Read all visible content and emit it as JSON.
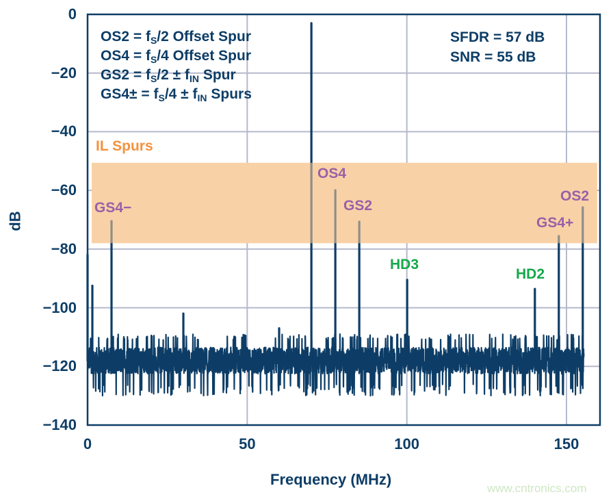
{
  "chart_data": {
    "type": "line",
    "title": "",
    "xlabel": "Frequency (MHz)",
    "ylabel": "dB",
    "xlim": [
      0,
      160.5
    ],
    "ylim": [
      -140,
      0
    ],
    "xticks": [
      "0",
      "50",
      "100",
      "150"
    ],
    "xtick_values": [
      0,
      50,
      100,
      150
    ],
    "yticks": [
      "0",
      "−20",
      "−40",
      "−60",
      "−80",
      "−100",
      "−120",
      "−140"
    ],
    "ytick_values": [
      0,
      -20,
      -40,
      -60,
      -80,
      -100,
      -120,
      -140
    ],
    "grid": true,
    "trace_range_mhz": [
      0,
      155.5
    ],
    "noise_floor_db": -118,
    "noise_range_db": [
      -126,
      -111
    ],
    "peaks": [
      {
        "label": "",
        "freq": 0.0,
        "db": -82
      },
      {
        "label": "",
        "freq": 1.5,
        "db": -92.5
      },
      {
        "label": "GS4−",
        "freq": 7.5,
        "db": -70.5
      },
      {
        "label": "",
        "freq": 30.0,
        "db": -102
      },
      {
        "label": "",
        "freq": 60.0,
        "db": -107
      },
      {
        "label": "",
        "freq": 70.1,
        "db": -3
      },
      {
        "label": "OS4",
        "freq": 77.6,
        "db": -60
      },
      {
        "label": "GS2",
        "freq": 85.1,
        "db": -70.7
      },
      {
        "label": "HD3",
        "freq": 100.1,
        "db": -90.5
      },
      {
        "label": "HD2",
        "freq": 140.1,
        "db": -93.6
      },
      {
        "label": "GS4+",
        "freq": 147.6,
        "db": -75.6
      },
      {
        "label": "OS2",
        "freq": 155.1,
        "db": -65.8
      }
    ],
    "band": {
      "label": "IL Spurs",
      "db_range": [
        -78,
        -50.6
      ],
      "freq_range": [
        1.3,
        159.6
      ]
    },
    "legend": [
      {
        "a": "OS2 = f",
        "sub": "S",
        "b": "/2 Offset Spur"
      },
      {
        "a": "OS4 = f",
        "sub": "S",
        "b": "/4 Offset Spur"
      },
      {
        "a": "GS2 = f",
        "sub": "S",
        "b": "/2 ± f",
        "sub2": "IN",
        "c": " Spur"
      },
      {
        "a": "GS4± = f",
        "sub": "S",
        "b": "/4 ± f",
        "sub2": "IN",
        "c": " Spurs"
      }
    ],
    "stats": [
      "SFDR = 57 dB",
      "SNR = 55 dB"
    ],
    "colors": {
      "trace": "#0d3d66",
      "band": "#f9d1a6",
      "band_label": "#f5923e",
      "offset_labels": "#9a60a8",
      "harmonic_labels": "#14a84a",
      "grid": "#b5b9cc"
    }
  },
  "watermark": "www.cntronics.com"
}
